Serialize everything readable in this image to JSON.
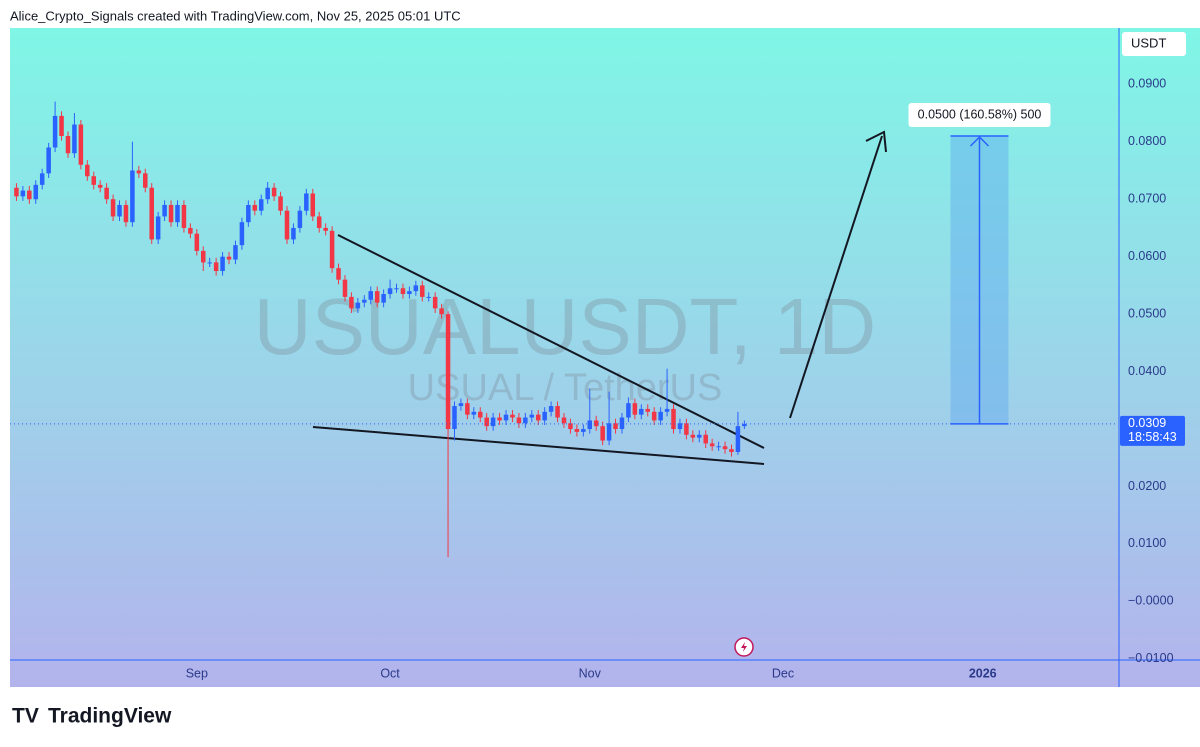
{
  "header": {
    "credit": "Alice_Crypto_Signals created with TradingView.com, Nov 25, 2025 05:01 UTC"
  },
  "footer": {
    "brand": "TradingView"
  },
  "chart_data": {
    "type": "candlestick",
    "watermark": {
      "symbol": "USUALUSDT, 1D",
      "description": "USUAL / TetherUS"
    },
    "currency": "USDT",
    "countdown": "18:58:43",
    "up_color": "#2962ff",
    "down_color": "#f23645",
    "xlim": [
      -29,
      143
    ],
    "xticks": [
      {
        "value": 0,
        "label": "Sep"
      },
      {
        "value": 30,
        "label": "Oct"
      },
      {
        "value": 61,
        "label": "Nov"
      },
      {
        "value": 91,
        "label": "Dec"
      },
      {
        "value": 122,
        "label": "2026"
      }
    ],
    "ylim": [
      -0.0102,
      0.0998
    ],
    "yticks": [
      {
        "value": -0.01,
        "label": "−0.0100"
      },
      {
        "value": 0,
        "label": "−0.0000"
      },
      {
        "value": 0.01,
        "label": "0.0100"
      },
      {
        "value": 0.02,
        "label": "0.0200"
      },
      {
        "value": 0.04,
        "label": "0.0400"
      },
      {
        "value": 0.05,
        "label": "0.0500"
      },
      {
        "value": 0.06,
        "label": "0.0600"
      },
      {
        "value": 0.07,
        "label": "0.0700"
      },
      {
        "value": 0.08,
        "label": "0.0800"
      },
      {
        "value": 0.09,
        "label": "0.0900"
      }
    ],
    "projection": {
      "label": "0.0500 (160.58%) 500",
      "from": 0.0309,
      "to": 0.081,
      "x": [
        117,
        126
      ]
    },
    "x": [
      -28,
      -27,
      -26,
      -25,
      -24,
      -23,
      -22,
      -21,
      -20,
      -19,
      -18,
      -17,
      -16,
      -15,
      -14,
      -13,
      -12,
      -11,
      -10,
      -9,
      -8,
      -7,
      -6,
      -5,
      -4,
      -3,
      -2,
      -1,
      0,
      1,
      2,
      3,
      4,
      5,
      6,
      7,
      8,
      9,
      10,
      11,
      12,
      13,
      14,
      15,
      16,
      17,
      18,
      19,
      20,
      21,
      22,
      23,
      24,
      25,
      26,
      27,
      28,
      29,
      30,
      31,
      32,
      33,
      34,
      35,
      36,
      37,
      38,
      39,
      40,
      41,
      42,
      43,
      44,
      45,
      46,
      47,
      48,
      49,
      50,
      51,
      52,
      53,
      54,
      55,
      56,
      57,
      58,
      59,
      60,
      61,
      62,
      63,
      64,
      65,
      66,
      67,
      68,
      69,
      70,
      71,
      72,
      73,
      74,
      75,
      76,
      77,
      78,
      79,
      80,
      81,
      82,
      83,
      84,
      85
    ],
    "open": [
      0.072,
      0.0705,
      0.0715,
      0.07,
      0.0725,
      0.0745,
      0.079,
      0.0845,
      0.081,
      0.078,
      0.083,
      0.076,
      0.074,
      0.0725,
      0.072,
      0.07,
      0.067,
      0.069,
      0.066,
      0.075,
      0.0745,
      0.072,
      0.063,
      0.067,
      0.069,
      0.066,
      0.069,
      0.065,
      0.064,
      0.061,
      0.059,
      0.059,
      0.0575,
      0.06,
      0.0595,
      0.062,
      0.066,
      0.069,
      0.068,
      0.07,
      0.072,
      0.0705,
      0.068,
      0.063,
      0.065,
      0.068,
      0.071,
      0.067,
      0.065,
      0.0645,
      0.058,
      0.056,
      0.053,
      0.051,
      0.052,
      0.0525,
      0.054,
      0.052,
      0.0535,
      0.0545,
      0.0545,
      0.0535,
      0.054,
      0.055,
      0.053,
      0.053,
      0.051,
      0.05,
      0.03,
      0.034,
      0.0345,
      0.0325,
      0.033,
      0.032,
      0.0305,
      0.032,
      0.0315,
      0.0325,
      0.032,
      0.031,
      0.032,
      0.0325,
      0.0315,
      0.033,
      0.034,
      0.032,
      0.031,
      0.03,
      0.0295,
      0.03,
      0.0315,
      0.0305,
      0.028,
      0.031,
      0.03,
      0.032,
      0.0345,
      0.0325,
      0.0335,
      0.033,
      0.0315,
      0.033,
      0.0335,
      0.03,
      0.031,
      0.029,
      0.0285,
      0.029,
      0.0275,
      0.027,
      0.027,
      0.0265,
      0.026,
      0.0305
    ],
    "high": [
      0.0728,
      0.0723,
      0.0723,
      0.0733,
      0.0753,
      0.0798,
      0.087,
      0.0853,
      0.0818,
      0.085,
      0.0838,
      0.0768,
      0.0748,
      0.0733,
      0.0728,
      0.0708,
      0.0698,
      0.0698,
      0.08,
      0.0758,
      0.0753,
      0.0728,
      0.0678,
      0.0698,
      0.0698,
      0.0698,
      0.0698,
      0.0658,
      0.0648,
      0.0618,
      0.0598,
      0.0598,
      0.0608,
      0.0608,
      0.0628,
      0.0668,
      0.0698,
      0.0698,
      0.0708,
      0.073,
      0.0728,
      0.0713,
      0.0688,
      0.0658,
      0.0688,
      0.0718,
      0.0718,
      0.0678,
      0.0658,
      0.0653,
      0.0588,
      0.0568,
      0.0538,
      0.0528,
      0.0533,
      0.0548,
      0.0548,
      0.0543,
      0.056,
      0.0553,
      0.0553,
      0.0548,
      0.0558,
      0.0558,
      0.0538,
      0.0538,
      0.0518,
      0.0505,
      0.0348,
      0.0353,
      0.0353,
      0.0338,
      0.0338,
      0.0328,
      0.0328,
      0.0328,
      0.0333,
      0.0333,
      0.0328,
      0.0328,
      0.0333,
      0.0333,
      0.0338,
      0.0348,
      0.0348,
      0.0328,
      0.0318,
      0.0308,
      0.0308,
      0.037,
      0.0323,
      0.0313,
      0.0365,
      0.0318,
      0.0328,
      0.0355,
      0.0353,
      0.0343,
      0.0343,
      0.0338,
      0.0338,
      0.0405,
      0.0343,
      0.0318,
      0.0318,
      0.0298,
      0.0298,
      0.0298,
      0.0283,
      0.0278,
      0.0278,
      0.0273,
      0.033,
      0.0315
    ],
    "low": [
      0.0697,
      0.0697,
      0.0692,
      0.0692,
      0.0717,
      0.0737,
      0.0782,
      0.0802,
      0.0772,
      0.0772,
      0.0752,
      0.0732,
      0.0717,
      0.0712,
      0.0692,
      0.0662,
      0.0662,
      0.0652,
      0.0652,
      0.0737,
      0.0712,
      0.0622,
      0.0622,
      0.0662,
      0.0652,
      0.0652,
      0.0642,
      0.0632,
      0.0602,
      0.0575,
      0.0582,
      0.0567,
      0.0567,
      0.0587,
      0.0587,
      0.0612,
      0.0652,
      0.0672,
      0.0672,
      0.0692,
      0.0697,
      0.0672,
      0.0622,
      0.0622,
      0.0642,
      0.0672,
      0.0662,
      0.0642,
      0.0637,
      0.0572,
      0.0552,
      0.0522,
      0.0502,
      0.0502,
      0.0512,
      0.0517,
      0.0512,
      0.0512,
      0.0527,
      0.0537,
      0.0527,
      0.0527,
      0.0532,
      0.0522,
      0.0522,
      0.0502,
      0.0492,
      0.0077,
      0.028,
      0.0332,
      0.0317,
      0.0317,
      0.0312,
      0.0297,
      0.0297,
      0.0307,
      0.0307,
      0.0312,
      0.0302,
      0.0302,
      0.0312,
      0.0307,
      0.0307,
      0.0322,
      0.0312,
      0.0302,
      0.0292,
      0.0287,
      0.0287,
      0.0292,
      0.0297,
      0.0272,
      0.0272,
      0.0292,
      0.0292,
      0.0312,
      0.0317,
      0.0317,
      0.0322,
      0.0307,
      0.0307,
      0.0322,
      0.0292,
      0.0292,
      0.0282,
      0.0277,
      0.0277,
      0.0267,
      0.0262,
      0.0262,
      0.0257,
      0.0252,
      0.0255,
      0.03
    ],
    "close": [
      0.0705,
      0.0715,
      0.07,
      0.0725,
      0.0745,
      0.079,
      0.0845,
      0.081,
      0.078,
      0.083,
      0.076,
      0.074,
      0.0725,
      0.072,
      0.07,
      0.067,
      0.069,
      0.066,
      0.075,
      0.0745,
      0.072,
      0.063,
      0.067,
      0.069,
      0.066,
      0.069,
      0.065,
      0.064,
      0.061,
      0.059,
      0.059,
      0.0575,
      0.06,
      0.0595,
      0.062,
      0.066,
      0.069,
      0.068,
      0.07,
      0.072,
      0.0705,
      0.068,
      0.063,
      0.065,
      0.068,
      0.071,
      0.067,
      0.065,
      0.0645,
      0.058,
      0.056,
      0.053,
      0.051,
      0.052,
      0.0525,
      0.054,
      0.052,
      0.0535,
      0.0545,
      0.0545,
      0.0535,
      0.054,
      0.055,
      0.053,
      0.053,
      0.051,
      0.05,
      0.03,
      0.034,
      0.0345,
      0.0325,
      0.033,
      0.032,
      0.0305,
      0.032,
      0.0315,
      0.0325,
      0.032,
      0.031,
      0.032,
      0.0325,
      0.0315,
      0.033,
      0.034,
      0.032,
      0.031,
      0.03,
      0.0295,
      0.03,
      0.0315,
      0.0305,
      0.028,
      0.031,
      0.03,
      0.032,
      0.0345,
      0.0325,
      0.0335,
      0.033,
      0.0315,
      0.033,
      0.0335,
      0.03,
      0.031,
      0.029,
      0.0285,
      0.029,
      0.0275,
      0.027,
      0.027,
      0.0265,
      0.026,
      0.0305,
      0.0309
    ]
  }
}
